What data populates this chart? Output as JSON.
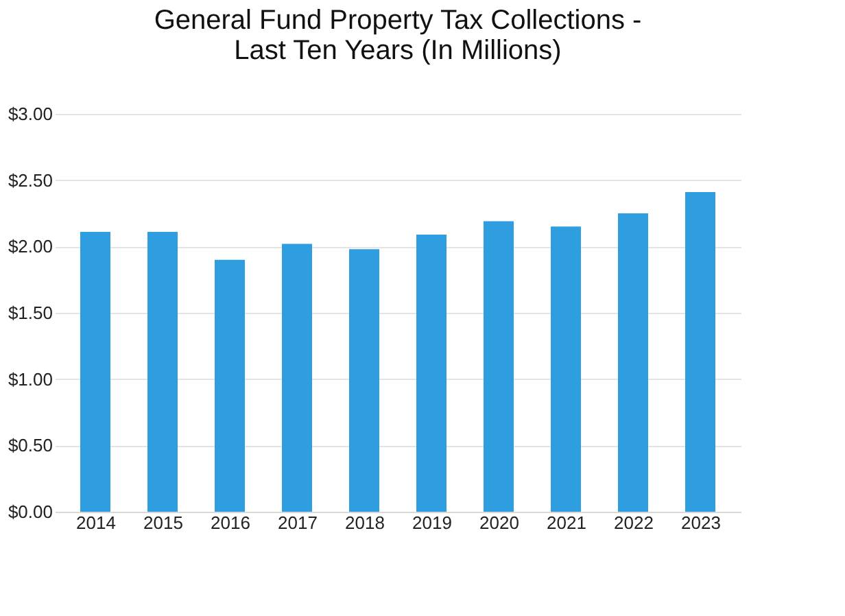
{
  "chart_data": {
    "type": "bar",
    "title": [
      "General Fund Property Tax Collections -",
      "Last Ten Years (In Millions)"
    ],
    "categories": [
      "2014",
      "2015",
      "2016",
      "2017",
      "2018",
      "2019",
      "2020",
      "2021",
      "2022",
      "2023"
    ],
    "values": [
      2.11,
      2.11,
      1.9,
      2.02,
      1.98,
      2.09,
      2.19,
      2.15,
      2.25,
      2.41
    ],
    "color": "#2e9ee0",
    "ylim": [
      0,
      3
    ],
    "yticks": [
      {
        "value": 0,
        "label": "$0.00"
      },
      {
        "value": 0.5,
        "label": "$0.50"
      },
      {
        "value": 1,
        "label": "$1.00"
      },
      {
        "value": 1.5,
        "label": "$1.50"
      },
      {
        "value": 2,
        "label": "$2.00"
      },
      {
        "value": 2.5,
        "label": "$2.50"
      },
      {
        "value": 3,
        "label": "$3.00"
      }
    ],
    "grid": "y"
  }
}
